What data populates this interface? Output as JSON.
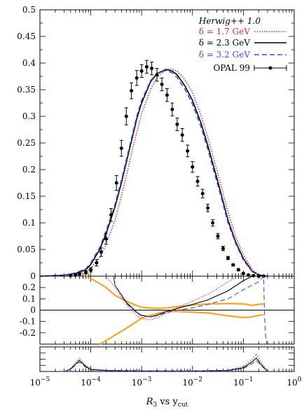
{
  "chart_data": [
    {
      "panel": "main",
      "type": "line",
      "title": "",
      "x_scale": "log",
      "xlim": [
        1e-05,
        1.0
      ],
      "ylim": [
        0,
        0.5
      ],
      "yticks": [
        0,
        0.05,
        0.1,
        0.15,
        0.2,
        0.25,
        0.3,
        0.35,
        0.4,
        0.45,
        0.5
      ],
      "ytick_labels": [
        "0",
        "0.05",
        "0.1",
        "0.15",
        "0.2",
        "0.25",
        "0.3",
        "0.35",
        "0.4",
        "0.45",
        "0.5"
      ],
      "legend_title": "Herwig++ 1.0",
      "legend_position": "top-right",
      "series": [
        {
          "name": "δ = 1.7 GeV",
          "style": "dotted",
          "color": "#e8292a",
          "x": [
            1e-05,
            3e-05,
            5e-05,
            8e-05,
            0.0001,
            0.00015,
            0.0002,
            0.0003,
            0.0004,
            0.0006,
            0.0008,
            0.001,
            0.0015,
            0.002,
            0.003,
            0.004,
            0.005,
            0.007,
            0.01,
            0.015,
            0.02,
            0.03,
            0.04,
            0.05,
            0.07,
            0.1,
            0.15,
            0.2,
            0.3
          ],
          "y": [
            0,
            0.001,
            0.003,
            0.008,
            0.015,
            0.035,
            0.06,
            0.105,
            0.15,
            0.22,
            0.27,
            0.305,
            0.35,
            0.373,
            0.388,
            0.389,
            0.385,
            0.37,
            0.345,
            0.3,
            0.26,
            0.2,
            0.155,
            0.12,
            0.075,
            0.04,
            0.012,
            0.003,
            0
          ]
        },
        {
          "name": "δ = 2.3 GeV",
          "style": "solid",
          "color": "#000000",
          "x": [
            1e-05,
            3e-05,
            5e-05,
            8e-05,
            0.0001,
            0.00015,
            0.0002,
            0.0003,
            0.0004,
            0.0006,
            0.0008,
            0.001,
            0.0015,
            0.002,
            0.003,
            0.004,
            0.005,
            0.007,
            0.01,
            0.015,
            0.02,
            0.03,
            0.04,
            0.05,
            0.07,
            0.1,
            0.15,
            0.2,
            0.3
          ],
          "y": [
            0,
            0.002,
            0.005,
            0.012,
            0.022,
            0.05,
            0.08,
            0.13,
            0.175,
            0.245,
            0.295,
            0.325,
            0.365,
            0.38,
            0.388,
            0.385,
            0.378,
            0.358,
            0.33,
            0.285,
            0.245,
            0.185,
            0.14,
            0.105,
            0.065,
            0.033,
            0.009,
            0.002,
            0
          ]
        },
        {
          "name": "δ = 3.2 GeV",
          "style": "dashed",
          "color": "#3b4fe8",
          "x": [
            1e-05,
            3e-05,
            5e-05,
            8e-05,
            0.0001,
            0.00015,
            0.0002,
            0.0003,
            0.0004,
            0.0006,
            0.0008,
            0.001,
            0.0015,
            0.002,
            0.003,
            0.004,
            0.005,
            0.007,
            0.01,
            0.015,
            0.02,
            0.03,
            0.04,
            0.05,
            0.07,
            0.1,
            0.15,
            0.2,
            0.3
          ],
          "y": [
            0,
            0.002,
            0.006,
            0.014,
            0.025,
            0.054,
            0.085,
            0.135,
            0.18,
            0.25,
            0.3,
            0.33,
            0.367,
            0.381,
            0.386,
            0.382,
            0.373,
            0.352,
            0.323,
            0.278,
            0.238,
            0.178,
            0.135,
            0.1,
            0.062,
            0.03,
            0.008,
            0.002,
            0
          ]
        }
      ],
      "data": {
        "name": "OPAL 99",
        "x": [
          4e-05,
          5e-05,
          6e-05,
          8e-05,
          0.0001,
          0.00013,
          0.00016,
          0.0002,
          0.00025,
          0.00032,
          0.0004,
          0.0005,
          0.00063,
          0.0008,
          0.001,
          0.00126,
          0.00158,
          0.002,
          0.0025,
          0.00316,
          0.004,
          0.005,
          0.0063,
          0.008,
          0.01,
          0.0126,
          0.0158,
          0.02,
          0.025,
          0.0316,
          0.04,
          0.05,
          0.063,
          0.08,
          0.1,
          0.126,
          0.158,
          0.2,
          0.25
        ],
        "y": [
          0.001,
          0.002,
          0.004,
          0.007,
          0.012,
          0.025,
          0.045,
          0.07,
          0.115,
          0.175,
          0.24,
          0.3,
          0.348,
          0.372,
          0.385,
          0.393,
          0.39,
          0.378,
          0.36,
          0.34,
          0.313,
          0.285,
          0.265,
          0.235,
          0.205,
          0.178,
          0.155,
          0.128,
          0.1,
          0.075,
          0.052,
          0.034,
          0.021,
          0.012,
          0.005,
          0.002,
          0.001,
          0,
          0
        ],
        "err": [
          0.001,
          0.002,
          0.002,
          0.003,
          0.004,
          0.006,
          0.008,
          0.01,
          0.012,
          0.014,
          0.015,
          0.016,
          0.015,
          0.014,
          0.012,
          0.012,
          0.012,
          0.012,
          0.012,
          0.012,
          0.012,
          0.012,
          0.012,
          0.011,
          0.01,
          0.009,
          0.008,
          0.007,
          0.006,
          0.005,
          0.004,
          0.003,
          0.002,
          0.002,
          0.001,
          0.001,
          0.001,
          0.001,
          0.001
        ]
      }
    },
    {
      "panel": "ratio",
      "type": "line",
      "x_scale": "log",
      "xlim": [
        1e-05,
        1.0
      ],
      "ylim": [
        -0.3,
        0.3
      ],
      "yticks": [
        -0.2,
        -0.1,
        0,
        0.1,
        0.2
      ],
      "ytick_labels": [
        "-0.2",
        "-0.1",
        "0",
        "0.1",
        "0.2"
      ],
      "band_upper": {
        "color": "#f5a623",
        "x": [
          8e-05,
          0.0001,
          0.0002,
          0.0003,
          0.0005,
          0.0008,
          0.001,
          0.002,
          0.003,
          0.005,
          0.01,
          0.02,
          0.05,
          0.1,
          0.15,
          0.2,
          0.25
        ],
        "y": [
          0.3,
          0.28,
          0.2,
          0.13,
          0.08,
          0.04,
          0.025,
          0.015,
          0.02,
          0.03,
          0.045,
          0.055,
          0.058,
          0.055,
          0.042,
          0.05,
          0.055
        ]
      },
      "band_lower": {
        "color": "#f5a623",
        "x": [
          0.00015,
          0.0002,
          0.0003,
          0.0005,
          0.0008,
          0.001,
          0.002,
          0.003,
          0.005,
          0.01,
          0.02,
          0.05,
          0.1,
          0.15,
          0.2,
          0.25
        ],
        "y": [
          -0.3,
          -0.27,
          -0.22,
          -0.16,
          -0.1,
          -0.07,
          -0.03,
          -0.01,
          -0.012,
          -0.018,
          -0.025,
          -0.05,
          -0.065,
          -0.06,
          -0.045,
          -0.04
        ]
      },
      "series": [
        {
          "style": "dotted",
          "color": "#e8292a",
          "x": [
            0.0002,
            0.0003,
            0.0005,
            0.0008,
            0.001,
            0.0015,
            0.002,
            0.003,
            0.005,
            0.01,
            0.02,
            0.05,
            0.08
          ],
          "y": [
            0.3,
            0.2,
            0.05,
            -0.05,
            -0.075,
            -0.085,
            -0.07,
            -0.03,
            0.02,
            0.08,
            0.14,
            0.25,
            0.3
          ]
        },
        {
          "style": "solid",
          "color": "#000000",
          "x": [
            0.00028,
            0.0003,
            0.0005,
            0.0008,
            0.001,
            0.0015,
            0.002,
            0.003,
            0.005,
            0.01,
            0.02,
            0.05,
            0.1,
            0.15
          ],
          "y": [
            0.3,
            0.22,
            0.07,
            -0.02,
            -0.045,
            -0.06,
            -0.045,
            -0.015,
            0.015,
            0.05,
            0.09,
            0.17,
            0.26,
            0.3
          ]
        },
        {
          "style": "dashed",
          "color": "#3b4fe8",
          "x": [
            0.00028,
            0.0003,
            0.0005,
            0.0008,
            0.001,
            0.0015,
            0.002,
            0.003,
            0.005,
            0.01,
            0.02,
            0.05,
            0.1,
            0.2,
            0.25,
            0.26,
            0.27,
            0.29
          ],
          "y": [
            0.3,
            0.22,
            0.06,
            -0.025,
            -0.05,
            -0.06,
            -0.05,
            -0.025,
            0.0,
            0.02,
            0.05,
            0.1,
            0.18,
            0.25,
            0.3,
            0.0,
            -0.2,
            -0.3
          ]
        }
      ]
    },
    {
      "panel": "chi2",
      "type": "line",
      "x_scale": "log",
      "xlim": [
        1e-05,
        1.0
      ],
      "ylim": [
        0,
        1
      ],
      "xticks": [
        1e-05,
        0.0001,
        0.001,
        0.01,
        0.1,
        1
      ],
      "xtick_base": "10",
      "xtick_exponents": [
        "−5",
        "−4",
        "−3",
        "−2",
        "−1",
        "0"
      ],
      "xlabel_main": "R",
      "xlabel_sub1": "3",
      "xlabel_mid": " vs y",
      "xlabel_sub2": "cut",
      "series": [
        {
          "style": "dotted",
          "color": "#e8292a",
          "x": [
            3e-05,
            4e-05,
            5e-05,
            6e-05,
            8e-05,
            0.0001,
            0.0002,
            0.001,
            0.01,
            0.05,
            0.1,
            0.15,
            0.18,
            0.22,
            0.3
          ],
          "y": [
            0,
            0.1,
            0.35,
            0.55,
            0.25,
            0.1,
            0.05,
            0.02,
            0.02,
            0.05,
            0.2,
            0.5,
            0.72,
            0.4,
            0
          ]
        },
        {
          "style": "solid",
          "color": "#000000",
          "x": [
            3e-05,
            4e-05,
            5e-05,
            6e-05,
            8e-05,
            0.0001,
            0.0002,
            0.001,
            0.01,
            0.05,
            0.1,
            0.15,
            0.18,
            0.22,
            0.3
          ],
          "y": [
            0,
            0.1,
            0.3,
            0.45,
            0.2,
            0.08,
            0.04,
            0.02,
            0.02,
            0.04,
            0.15,
            0.4,
            0.55,
            0.3,
            0
          ]
        },
        {
          "style": "dashed",
          "color": "#3b4fe8",
          "x": [
            3e-05,
            4e-05,
            5e-05,
            6e-05,
            8e-05,
            0.0001,
            0.0002,
            0.001,
            0.01,
            0.05,
            0.1,
            0.15,
            0.18,
            0.22,
            0.3
          ],
          "y": [
            0,
            0.08,
            0.25,
            0.38,
            0.16,
            0.06,
            0.03,
            0.02,
            0.02,
            0.03,
            0.12,
            0.32,
            0.45,
            0.25,
            0
          ]
        }
      ]
    }
  ]
}
